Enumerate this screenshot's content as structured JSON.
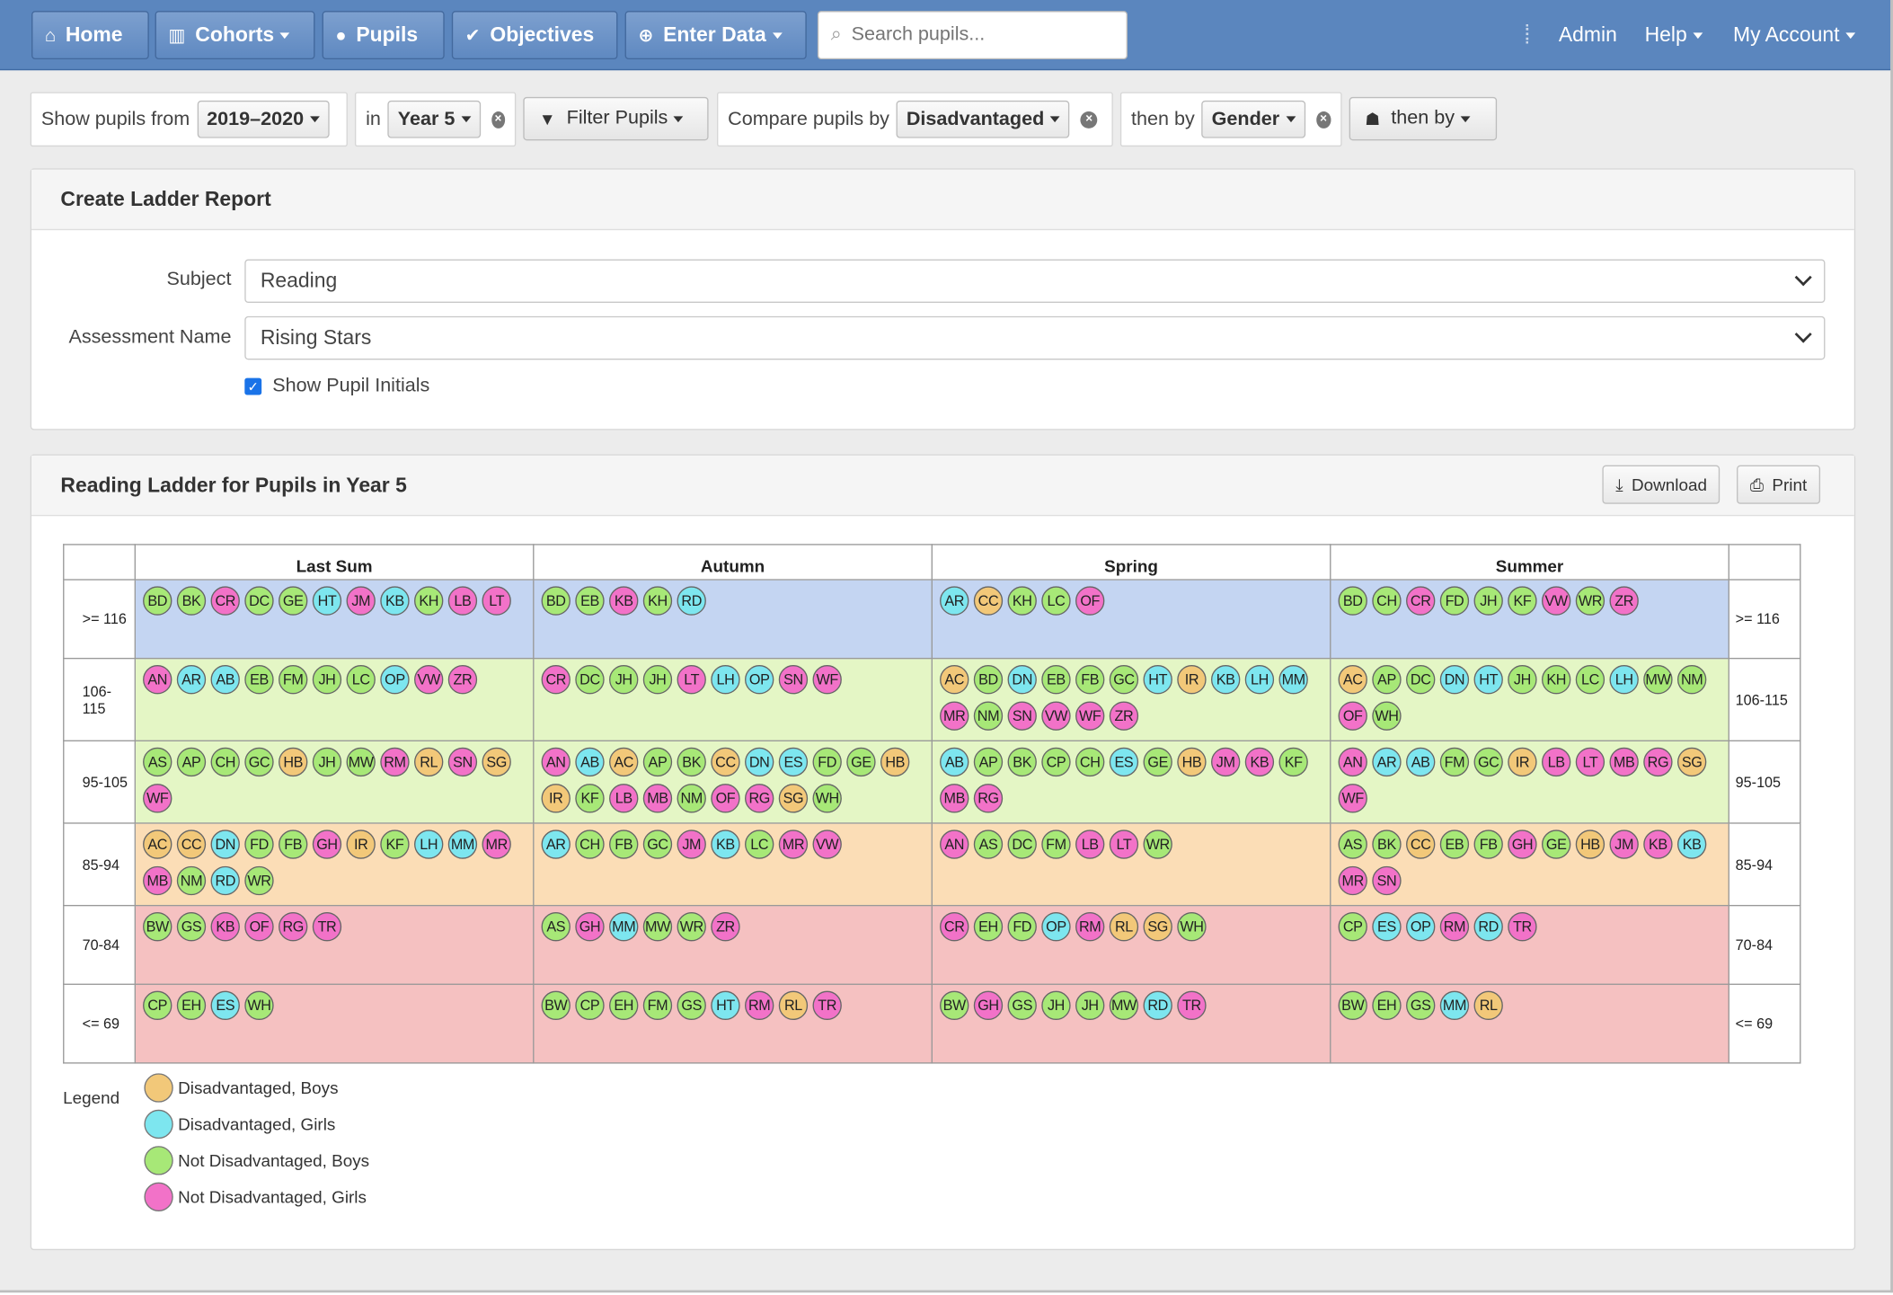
{
  "nav": {
    "home": "Home",
    "cohorts": "Cohorts",
    "pupils": "Pupils",
    "objectives": "Objectives",
    "enter_data": "Enter Data",
    "search_placeholder": "Search pupils...",
    "admin": "Admin",
    "help": "Help",
    "my_account": "My Account"
  },
  "filters": {
    "show_from_label": "Show pupils from",
    "year_value": "2019–2020",
    "in_label": "in",
    "class_value": "Year 5",
    "filter_button": "Filter Pupils",
    "compare_label": "Compare pupils by",
    "compare_value": "Disadvantaged",
    "then_by_label": "then by",
    "then_by_value": "Gender",
    "then_by_button": "then by"
  },
  "create_panel": {
    "title": "Create Ladder Report",
    "subject_label": "Subject",
    "subject_value": "Reading",
    "assessment_label": "Assessment Name",
    "assessment_value": "Rising Stars",
    "show_initials_label": "Show Pupil Initials",
    "show_initials_checked": true
  },
  "ladder_panel": {
    "title": "Reading Ladder for Pupils in Year 5",
    "download": "Download",
    "print": "Print"
  },
  "colors": {
    "DB": "#f2c879",
    "DG": "#7de6ef",
    "NB": "#a7e877",
    "NG": "#f272c8",
    "band_top": "#c4d5f2",
    "band_mid": "#e4f6c5",
    "band_low": "#fbddb6",
    "band_bottom": "#f5c1c1"
  },
  "ladder": {
    "columns": [
      "Last Sum",
      "Autumn",
      "Spring",
      "Summer"
    ],
    "rows": [
      {
        "label": "&gt;= 116",
        "band": "band_top",
        "cells": [
          [
            [
              "BD",
              "NB"
            ],
            [
              "BK",
              "NB"
            ],
            [
              "CR",
              "NG"
            ],
            [
              "DC",
              "NB"
            ],
            [
              "GE",
              "NB"
            ],
            [
              "HT",
              "DG"
            ],
            [
              "JM",
              "NG"
            ],
            [
              "KB",
              "DG"
            ],
            [
              "KH",
              "NB"
            ],
            [
              "LB",
              "NG"
            ],
            [
              "LT",
              "NG"
            ]
          ],
          [
            [
              "BD",
              "NB"
            ],
            [
              "EB",
              "NB"
            ],
            [
              "KB",
              "NG"
            ],
            [
              "KH",
              "NB"
            ],
            [
              "RD",
              "DG"
            ]
          ],
          [
            [
              "AR",
              "DG"
            ],
            [
              "CC",
              "DB"
            ],
            [
              "KH",
              "NB"
            ],
            [
              "LC",
              "NB"
            ],
            [
              "OF",
              "NG"
            ]
          ],
          [
            [
              "BD",
              "NB"
            ],
            [
              "CH",
              "NB"
            ],
            [
              "CR",
              "NG"
            ],
            [
              "FD",
              "NB"
            ],
            [
              "JH",
              "NB"
            ],
            [
              "KF",
              "NB"
            ],
            [
              "VW",
              "NG"
            ],
            [
              "WR",
              "NB"
            ],
            [
              "ZR",
              "NG"
            ]
          ]
        ]
      },
      {
        "label": "106-115",
        "band": "band_mid",
        "cells": [
          [
            [
              "AN",
              "NG"
            ],
            [
              "AR",
              "DG"
            ],
            [
              "AB",
              "DG"
            ],
            [
              "EB",
              "NB"
            ],
            [
              "FM",
              "NB"
            ],
            [
              "JH",
              "NB"
            ],
            [
              "LC",
              "NB"
            ],
            [
              "OP",
              "DG"
            ],
            [
              "VW",
              "NG"
            ],
            [
              "ZR",
              "NG"
            ]
          ],
          [
            [
              "CR",
              "NG"
            ],
            [
              "DC",
              "NB"
            ],
            [
              "JH",
              "NB"
            ],
            [
              "JH",
              "NB"
            ],
            [
              "LT",
              "NG"
            ],
            [
              "LH",
              "DG"
            ],
            [
              "OP",
              "DG"
            ],
            [
              "SN",
              "NG"
            ],
            [
              "WF",
              "NG"
            ]
          ],
          [
            [
              "AC",
              "DB"
            ],
            [
              "BD",
              "NB"
            ],
            [
              "DN",
              "DG"
            ],
            [
              "EB",
              "NB"
            ],
            [
              "FB",
              "NB"
            ],
            [
              "GC",
              "NB"
            ],
            [
              "HT",
              "DG"
            ],
            [
              "IR",
              "DB"
            ],
            [
              "KB",
              "DG"
            ],
            [
              "LH",
              "DG"
            ],
            [
              "MM",
              "DG"
            ],
            [
              "MR",
              "NG"
            ],
            [
              "NM",
              "NB"
            ],
            [
              "SN",
              "NG"
            ],
            [
              "VW",
              "NG"
            ],
            [
              "WF",
              "NG"
            ],
            [
              "ZR",
              "NG"
            ]
          ],
          [
            [
              "AC",
              "DB"
            ],
            [
              "AP",
              "NB"
            ],
            [
              "DC",
              "NB"
            ],
            [
              "DN",
              "DG"
            ],
            [
              "HT",
              "DG"
            ],
            [
              "JH",
              "NB"
            ],
            [
              "KH",
              "NB"
            ],
            [
              "LC",
              "NB"
            ],
            [
              "LH",
              "DG"
            ],
            [
              "MW",
              "NB"
            ],
            [
              "NM",
              "NB"
            ],
            [
              "OF",
              "NG"
            ],
            [
              "WH",
              "NB"
            ]
          ]
        ]
      },
      {
        "label": "95-105",
        "band": "band_mid",
        "cells": [
          [
            [
              "AS",
              "NB"
            ],
            [
              "AP",
              "NB"
            ],
            [
              "CH",
              "NB"
            ],
            [
              "GC",
              "NB"
            ],
            [
              "HB",
              "DB"
            ],
            [
              "JH",
              "NB"
            ],
            [
              "MW",
              "NB"
            ],
            [
              "RM",
              "NG"
            ],
            [
              "RL",
              "DB"
            ],
            [
              "SN",
              "NG"
            ],
            [
              "SG",
              "DB"
            ],
            [
              "WF",
              "NG"
            ]
          ],
          [
            [
              "AN",
              "NG"
            ],
            [
              "AB",
              "DG"
            ],
            [
              "AC",
              "DB"
            ],
            [
              "AP",
              "NB"
            ],
            [
              "BK",
              "NB"
            ],
            [
              "CC",
              "DB"
            ],
            [
              "DN",
              "DG"
            ],
            [
              "ES",
              "DG"
            ],
            [
              "FD",
              "NB"
            ],
            [
              "GE",
              "NB"
            ],
            [
              "HB",
              "DB"
            ],
            [
              "IR",
              "DB"
            ],
            [
              "KF",
              "NB"
            ],
            [
              "LB",
              "NG"
            ],
            [
              "MB",
              "NG"
            ],
            [
              "NM",
              "NB"
            ],
            [
              "OF",
              "NG"
            ],
            [
              "RG",
              "NG"
            ],
            [
              "SG",
              "DB"
            ],
            [
              "WH",
              "NB"
            ]
          ],
          [
            [
              "AB",
              "DG"
            ],
            [
              "AP",
              "NB"
            ],
            [
              "BK",
              "NB"
            ],
            [
              "CP",
              "NB"
            ],
            [
              "CH",
              "NB"
            ],
            [
              "ES",
              "DG"
            ],
            [
              "GE",
              "NB"
            ],
            [
              "HB",
              "DB"
            ],
            [
              "JM",
              "NG"
            ],
            [
              "KB",
              "NG"
            ],
            [
              "KF",
              "NB"
            ],
            [
              "MB",
              "NG"
            ],
            [
              "RG",
              "NG"
            ]
          ],
          [
            [
              "AN",
              "NG"
            ],
            [
              "AR",
              "DG"
            ],
            [
              "AB",
              "DG"
            ],
            [
              "FM",
              "NB"
            ],
            [
              "GC",
              "NB"
            ],
            [
              "IR",
              "DB"
            ],
            [
              "LB",
              "NG"
            ],
            [
              "LT",
              "NG"
            ],
            [
              "MB",
              "NG"
            ],
            [
              "RG",
              "NG"
            ],
            [
              "SG",
              "DB"
            ],
            [
              "WF",
              "NG"
            ]
          ]
        ]
      },
      {
        "label": "85-94",
        "band": "band_low",
        "cells": [
          [
            [
              "AC",
              "DB"
            ],
            [
              "CC",
              "DB"
            ],
            [
              "DN",
              "DG"
            ],
            [
              "FD",
              "NB"
            ],
            [
              "FB",
              "NB"
            ],
            [
              "GH",
              "NG"
            ],
            [
              "IR",
              "DB"
            ],
            [
              "KF",
              "NB"
            ],
            [
              "LH",
              "DG"
            ],
            [
              "MM",
              "DG"
            ],
            [
              "MR",
              "NG"
            ],
            [
              "MB",
              "NG"
            ],
            [
              "NM",
              "NB"
            ],
            [
              "RD",
              "DG"
            ],
            [
              "WR",
              "NB"
            ]
          ],
          [
            [
              "AR",
              "DG"
            ],
            [
              "CH",
              "NB"
            ],
            [
              "FB",
              "NB"
            ],
            [
              "GC",
              "NB"
            ],
            [
              "JM",
              "NG"
            ],
            [
              "KB",
              "DG"
            ],
            [
              "LC",
              "NB"
            ],
            [
              "MR",
              "NG"
            ],
            [
              "VW",
              "NG"
            ]
          ],
          [
            [
              "AN",
              "NG"
            ],
            [
              "AS",
              "NB"
            ],
            [
              "DC",
              "NB"
            ],
            [
              "FM",
              "NB"
            ],
            [
              "LB",
              "NG"
            ],
            [
              "LT",
              "NG"
            ],
            [
              "WR",
              "NB"
            ]
          ],
          [
            [
              "AS",
              "NB"
            ],
            [
              "BK",
              "NB"
            ],
            [
              "CC",
              "DB"
            ],
            [
              "EB",
              "NB"
            ],
            [
              "FB",
              "NB"
            ],
            [
              "GH",
              "NG"
            ],
            [
              "GE",
              "NB"
            ],
            [
              "HB",
              "DB"
            ],
            [
              "JM",
              "NG"
            ],
            [
              "KB",
              "NG"
            ],
            [
              "KB",
              "DG"
            ],
            [
              "MR",
              "NG"
            ],
            [
              "SN",
              "NG"
            ]
          ]
        ]
      },
      {
        "label": "70-84",
        "band": "band_bottom",
        "cells": [
          [
            [
              "BW",
              "NB"
            ],
            [
              "GS",
              "NB"
            ],
            [
              "KB",
              "NG"
            ],
            [
              "OF",
              "NG"
            ],
            [
              "RG",
              "NG"
            ],
            [
              "TR",
              "NG"
            ]
          ],
          [
            [
              "AS",
              "NB"
            ],
            [
              "GH",
              "NG"
            ],
            [
              "MM",
              "DG"
            ],
            [
              "MW",
              "NB"
            ],
            [
              "WR",
              "NB"
            ],
            [
              "ZR",
              "NG"
            ]
          ],
          [
            [
              "CR",
              "NG"
            ],
            [
              "EH",
              "NB"
            ],
            [
              "FD",
              "NB"
            ],
            [
              "OP",
              "DG"
            ],
            [
              "RM",
              "NG"
            ],
            [
              "RL",
              "DB"
            ],
            [
              "SG",
              "DB"
            ],
            [
              "WH",
              "NB"
            ]
          ],
          [
            [
              "CP",
              "NB"
            ],
            [
              "ES",
              "DG"
            ],
            [
              "OP",
              "DG"
            ],
            [
              "RM",
              "NG"
            ],
            [
              "RD",
              "DG"
            ],
            [
              "TR",
              "NG"
            ]
          ]
        ]
      },
      {
        "label": "&lt;= 69",
        "band": "band_bottom",
        "cells": [
          [
            [
              "CP",
              "NB"
            ],
            [
              "EH",
              "NB"
            ],
            [
              "ES",
              "DG"
            ],
            [
              "WH",
              "NB"
            ]
          ],
          [
            [
              "BW",
              "NB"
            ],
            [
              "CP",
              "NB"
            ],
            [
              "EH",
              "NB"
            ],
            [
              "FM",
              "NB"
            ],
            [
              "GS",
              "NB"
            ],
            [
              "HT",
              "DG"
            ],
            [
              "RM",
              "NG"
            ],
            [
              "RL",
              "DB"
            ],
            [
              "TR",
              "NG"
            ]
          ],
          [
            [
              "BW",
              "NB"
            ],
            [
              "GH",
              "NG"
            ],
            [
              "GS",
              "NB"
            ],
            [
              "JH",
              "NB"
            ],
            [
              "JH",
              "NB"
            ],
            [
              "MW",
              "NB"
            ],
            [
              "RD",
              "DG"
            ],
            [
              "TR",
              "NG"
            ]
          ],
          [
            [
              "BW",
              "NB"
            ],
            [
              "EH",
              "NB"
            ],
            [
              "GS",
              "NB"
            ],
            [
              "MM",
              "DG"
            ],
            [
              "RL",
              "DB"
            ]
          ]
        ]
      }
    ]
  },
  "legend": {
    "title": "Legend",
    "items": [
      {
        "key": "DB",
        "label": "Disadvantaged, Boys"
      },
      {
        "key": "DG",
        "label": "Disadvantaged, Girls"
      },
      {
        "key": "NB",
        "label": "Not Disadvantaged, Boys"
      },
      {
        "key": "NG",
        "label": "Not Disadvantaged, Girls"
      }
    ]
  }
}
